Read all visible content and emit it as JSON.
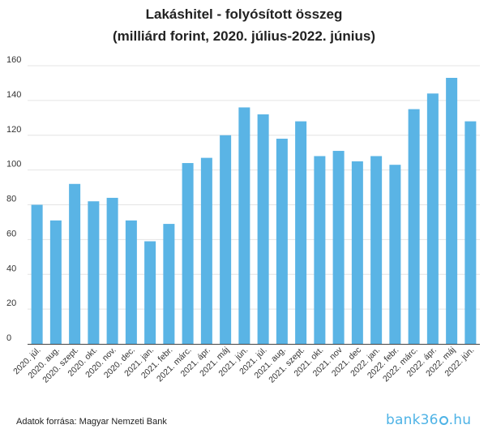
{
  "title_line1": "Lakáshitel - folyósított összeg",
  "title_line2": "(milliárd forint, 2020. július-2022. június)",
  "source": "Adatok forrása: Magyar Nemzeti Bank",
  "logo": {
    "before": "bank36",
    "after": "hu"
  },
  "colors": {
    "bar": "#5ab4e5",
    "grid": "#e4e4e4",
    "axis": "#444444"
  },
  "chart_data": {
    "type": "bar",
    "title": "Lakáshitel - folyósított összeg (milliárd forint, 2020. július-2022. június)",
    "xlabel": "",
    "ylabel": "",
    "ylim": [
      0,
      160
    ],
    "yticks": [
      0,
      20,
      40,
      60,
      80,
      100,
      120,
      140,
      160
    ],
    "grid": true,
    "categories": [
      "2020. júl.",
      "2020. aug.",
      "2020. szept.",
      "2020. okt.",
      "2020. nov.",
      "2020. dec.",
      "2021. jan.",
      "2021. febr.",
      "2021. márc.",
      "2021. ápr.",
      "2021. máj",
      "2021. jún.",
      "2021. júl.",
      "2021. aug.",
      "2021. szept.",
      "2021. okt.",
      "2021. nov",
      "2021. dec",
      "2022. jan.",
      "2022. febr.",
      "2022. márc.",
      "2022. ápr.",
      "2022. máj",
      "2022. jún."
    ],
    "values": [
      80,
      71,
      92,
      82,
      84,
      71,
      59,
      69,
      104,
      107,
      120,
      136,
      132,
      118,
      128,
      108,
      111,
      105,
      108,
      103,
      135,
      144,
      153,
      128
    ]
  }
}
